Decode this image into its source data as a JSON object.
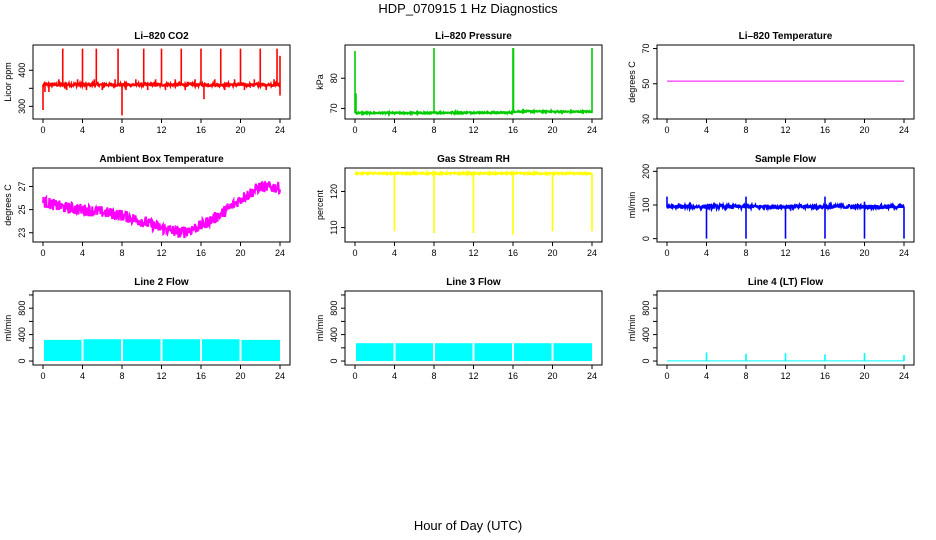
{
  "figure": {
    "title": "HDP_070915  1 Hz Diagnostics",
    "xlabel": "Hour of Day (UTC)"
  },
  "chart_data": [
    {
      "type": "line",
      "title": "Li–820 CO2",
      "ylabel": "Licor ppm",
      "color": "#ff0000",
      "xlim": [
        0,
        24
      ],
      "ylim": [
        265,
        470
      ],
      "xticks": [
        "0",
        "4",
        "8",
        "12",
        "16",
        "20",
        "24"
      ],
      "yticks": [
        300,
        350,
        400
      ],
      "yticklabels": [
        "300",
        "",
        "400"
      ],
      "baseline": 360,
      "noise": 4,
      "spikes": [
        [
          0.0,
          290
        ],
        [
          0.2,
          340
        ],
        [
          0.6,
          340
        ],
        [
          1.6,
          375
        ],
        [
          2.0,
          460
        ],
        [
          2.4,
          345
        ],
        [
          3.5,
          375
        ],
        [
          4.0,
          460
        ],
        [
          4.4,
          345
        ],
        [
          5.2,
          375
        ],
        [
          5.4,
          460
        ],
        [
          6.0,
          345
        ],
        [
          7.3,
          375
        ],
        [
          7.6,
          460
        ],
        [
          8.0,
          275
        ],
        [
          8.4,
          345
        ],
        [
          9.4,
          375
        ],
        [
          10.2,
          460
        ],
        [
          10.6,
          345
        ],
        [
          11.4,
          375
        ],
        [
          12.0,
          460
        ],
        [
          12.4,
          345
        ],
        [
          13.4,
          375
        ],
        [
          14.0,
          460
        ],
        [
          14.4,
          345
        ],
        [
          15.4,
          375
        ],
        [
          16.0,
          460
        ],
        [
          16.3,
          320
        ],
        [
          17.4,
          375
        ],
        [
          18.0,
          460
        ],
        [
          18.4,
          345
        ],
        [
          19.4,
          375
        ],
        [
          20.0,
          460
        ],
        [
          20.4,
          345
        ],
        [
          21.4,
          375
        ],
        [
          22.0,
          460
        ],
        [
          22.6,
          345
        ],
        [
          23.4,
          375
        ],
        [
          23.7,
          460
        ],
        [
          24.0,
          440
        ],
        [
          24.0,
          330
        ]
      ]
    },
    {
      "type": "line",
      "title": "Li–820 Pressure",
      "ylabel": "kPa",
      "color": "#00cc00",
      "xlim": [
        0,
        24
      ],
      "ylim": [
        66.5,
        91
      ],
      "xticks": [
        "0",
        "4",
        "8",
        "12",
        "16",
        "20",
        "24"
      ],
      "yticks": [
        70,
        80
      ],
      "yticklabels": [
        "70",
        "80"
      ],
      "segments": [
        [
          0,
          68.5
        ],
        [
          4,
          68.5
        ],
        [
          8,
          68.6
        ],
        [
          12,
          68.6
        ],
        [
          16,
          69.0
        ],
        [
          20,
          68.9
        ],
        [
          24,
          68.7
        ]
      ],
      "noise": 0.25,
      "spikes": [
        [
          0.0,
          89
        ],
        [
          0.1,
          75
        ],
        [
          4.0,
          67.8
        ],
        [
          8.0,
          90
        ],
        [
          16.0,
          90
        ],
        [
          16.05,
          90
        ],
        [
          24.0,
          90
        ]
      ]
    },
    {
      "type": "line",
      "title": "Li–820 Temperature",
      "ylabel": "degrees C",
      "color": "#ff00ff",
      "xlim": [
        0,
        24
      ],
      "ylim": [
        30,
        72
      ],
      "xticks": [
        "0",
        "4",
        "8",
        "12",
        "16",
        "20",
        "24"
      ],
      "yticks": [
        30,
        50,
        70
      ],
      "yticklabels": [
        "30",
        "50",
        "70"
      ],
      "baseline": 51.5,
      "noise": 0
    },
    {
      "type": "line",
      "title": "Ambient Box Temperature",
      "ylabel": "degrees C",
      "color": "#ff00ff",
      "xlim": [
        0,
        24
      ],
      "ylim": [
        22.2,
        28.6
      ],
      "xticks": [
        "0",
        "4",
        "8",
        "12",
        "16",
        "20",
        "24"
      ],
      "yticks": [
        23,
        25,
        27
      ],
      "yticklabels": [
        "23",
        "25",
        "27"
      ],
      "trend": [
        [
          0,
          25.7
        ],
        [
          2,
          25.2
        ],
        [
          4,
          25.0
        ],
        [
          6,
          24.8
        ],
        [
          8,
          24.5
        ],
        [
          10,
          24.0
        ],
        [
          12,
          23.4
        ],
        [
          14,
          23.0
        ],
        [
          16,
          23.6
        ],
        [
          18,
          24.6
        ],
        [
          20,
          25.9
        ],
        [
          22,
          27.0
        ],
        [
          24,
          26.9
        ]
      ],
      "noise": 0.5
    },
    {
      "type": "line",
      "title": "Gas Stream RH",
      "ylabel": "percent",
      "color": "#ffff00",
      "xlim": [
        0,
        24
      ],
      "ylim": [
        106,
        126.5
      ],
      "xticks": [
        "0",
        "4",
        "8",
        "12",
        "16",
        "20",
        "24"
      ],
      "yticks": [
        110,
        120
      ],
      "yticklabels": [
        "110",
        "120"
      ],
      "baseline": 125,
      "noise": 0.2,
      "spikes": [
        [
          4.0,
          109
        ],
        [
          8.0,
          108.5
        ],
        [
          12.0,
          108.5
        ],
        [
          16.0,
          108
        ],
        [
          20.0,
          109
        ],
        [
          24.0,
          109
        ]
      ]
    },
    {
      "type": "line",
      "title": "Sample Flow",
      "ylabel": "ml/min",
      "color": "#0000ff",
      "xlim": [
        0,
        24
      ],
      "ylim": [
        -10,
        210
      ],
      "xticks": [
        "0",
        "4",
        "8",
        "12",
        "16",
        "20",
        "24"
      ],
      "yticks": [
        0,
        100,
        200
      ],
      "yticklabels": [
        "0",
        "100",
        "200"
      ],
      "baseline": 95,
      "noise": 6,
      "spikes": [
        [
          0.0,
          125
        ],
        [
          4.0,
          0
        ],
        [
          8.0,
          0
        ],
        [
          8.0,
          125
        ],
        [
          12.0,
          0
        ],
        [
          16.0,
          0
        ],
        [
          16.0,
          125
        ],
        [
          20.0,
          0
        ],
        [
          20.0,
          110
        ],
        [
          24.0,
          0
        ]
      ]
    },
    {
      "type": "area",
      "title": "Line 2 Flow",
      "ylabel": "ml/min",
      "color": "#00ffff",
      "xlim": [
        0,
        24
      ],
      "ylim": [
        -60,
        1060
      ],
      "xticks": [
        "0",
        "4",
        "8",
        "12",
        "16",
        "20",
        "24"
      ],
      "yticks": [
        0,
        200,
        400,
        600,
        800,
        1000
      ],
      "yticklabels": [
        "0",
        "",
        "400",
        "",
        "800",
        ""
      ],
      "blocks": [
        [
          0.1,
          3.9,
          320
        ],
        [
          4.1,
          7.9,
          330
        ],
        [
          8.1,
          11.9,
          330
        ],
        [
          12.1,
          15.9,
          330
        ],
        [
          16.1,
          19.9,
          330
        ],
        [
          20.1,
          24.0,
          320
        ]
      ]
    },
    {
      "type": "area",
      "title": "Line 3 Flow",
      "ylabel": "ml/min",
      "color": "#00ffff",
      "xlim": [
        0,
        24
      ],
      "ylim": [
        -60,
        1060
      ],
      "xticks": [
        "0",
        "4",
        "8",
        "12",
        "16",
        "20",
        "24"
      ],
      "yticks": [
        0,
        200,
        400,
        600,
        800,
        1000
      ],
      "yticklabels": [
        "0",
        "",
        "400",
        "",
        "800",
        ""
      ],
      "blocks": [
        [
          0.1,
          3.9,
          270
        ],
        [
          4.1,
          7.9,
          270
        ],
        [
          8.1,
          11.9,
          270
        ],
        [
          12.1,
          15.9,
          270
        ],
        [
          16.1,
          19.9,
          270
        ],
        [
          20.1,
          24.0,
          270
        ]
      ]
    },
    {
      "type": "line",
      "title": "Line 4 (LT) Flow",
      "ylabel": "ml/min",
      "color": "#00ffff",
      "xlim": [
        0,
        24
      ],
      "ylim": [
        -60,
        1060
      ],
      "xticks": [
        "0",
        "4",
        "8",
        "12",
        "16",
        "20",
        "24"
      ],
      "yticks": [
        0,
        200,
        400,
        600,
        800,
        1000
      ],
      "yticklabels": [
        "0",
        "",
        "400",
        "",
        "800",
        ""
      ],
      "baseline": 2,
      "noise": 0,
      "spikes": [
        [
          4.0,
          130
        ],
        [
          8.0,
          110
        ],
        [
          12.0,
          120
        ],
        [
          16.0,
          100
        ],
        [
          20.0,
          120
        ],
        [
          24.0,
          90
        ]
      ]
    }
  ]
}
